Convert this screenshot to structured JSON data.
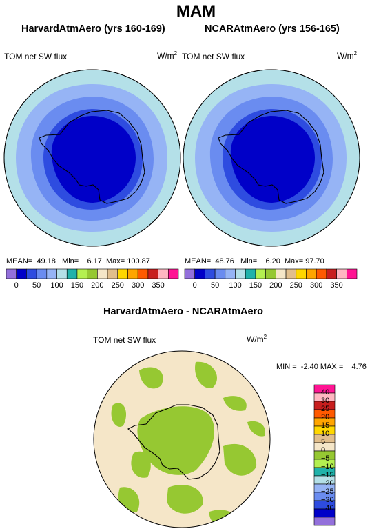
{
  "title": "MAM",
  "panels": [
    {
      "model": "HarvardAtmAero (yrs 160-169)",
      "variable": "TOM net SW flux",
      "units_base": "W/m",
      "units_exp": "2",
      "stats": {
        "mean_label": "MEAN=",
        "mean": "49.18",
        "min_label": "Min=",
        "min": "6.17",
        "max_label": "Max=",
        "max": "100.87"
      }
    },
    {
      "model": "NCARAtmAero (yrs 156-165)",
      "variable": "TOM net SW flux",
      "units_base": "W/m",
      "units_exp": "2",
      "stats": {
        "mean_label": "MEAN=",
        "mean": "48.76",
        "min_label": "Min=",
        "min": "6.20",
        "max_label": "Max=",
        "max": "97.70"
      }
    }
  ],
  "colorbar_top": {
    "colors": [
      "#9370DB",
      "#0000C8",
      "#2E4CE0",
      "#6A8CF0",
      "#96B4F5",
      "#B4E0E8",
      "#20B2AA",
      "#B4F050",
      "#96C832",
      "#F5E6C8",
      "#E1BE8C",
      "#FFD700",
      "#FFA500",
      "#FF5A00",
      "#C81E1E",
      "#FFB6C1",
      "#FF1493"
    ],
    "tick_labels": [
      "0",
      "50",
      "100",
      "150",
      "200",
      "250",
      "300",
      "350"
    ]
  },
  "difference": {
    "title": "HarvardAtmAero - NCARAtmAero",
    "variable": "TOM net SW flux",
    "units_base": "W/m",
    "units_exp": "2",
    "min_label": "MIN =",
    "min": "-2.40",
    "max_label": "MAX =",
    "max": "4.76"
  },
  "colorbar_diff": {
    "colors": [
      "#FF1493",
      "#FFB6C1",
      "#C81E1E",
      "#FF5A00",
      "#FFA500",
      "#FFD700",
      "#E1BE8C",
      "#F5E6C8",
      "#96C832",
      "#B4F050",
      "#20B2AA",
      "#B4E0E8",
      "#96B4F5",
      "#6A8CF0",
      "#2E4CE0",
      "#0000C8",
      "#9370DB"
    ],
    "tick_labels": [
      "40",
      "30",
      "25",
      "20",
      "15",
      "10",
      "5",
      "0",
      "−5",
      "−10",
      "−15",
      "−20",
      "−25",
      "−30",
      "−40"
    ]
  }
}
